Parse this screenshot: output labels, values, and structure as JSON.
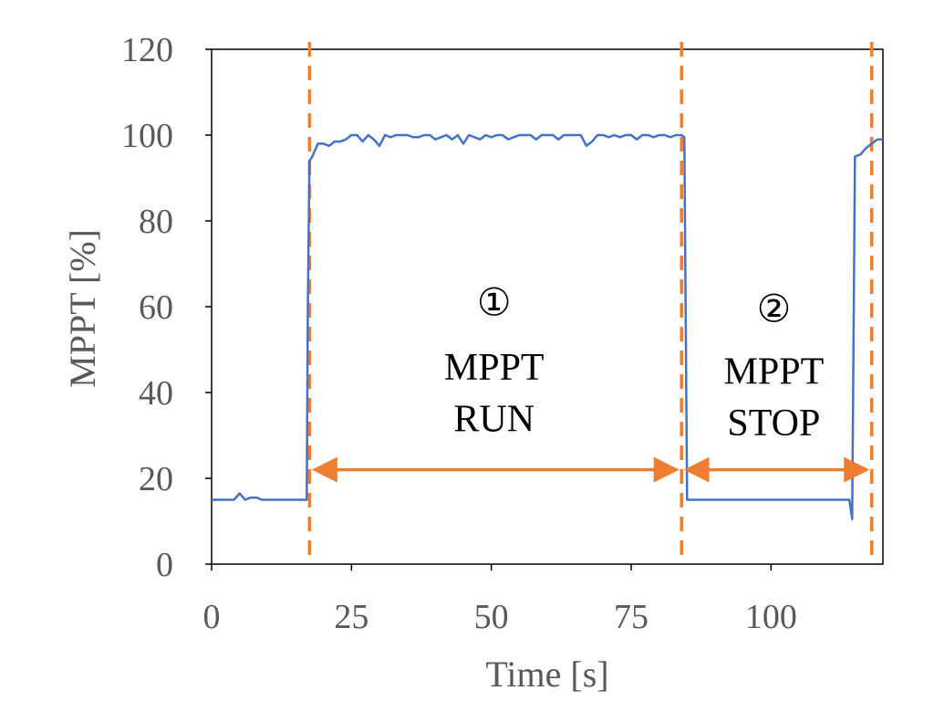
{
  "chart_data": {
    "type": "line",
    "xlabel": "Time [s]",
    "ylabel": "MPPT [%]",
    "xlim": [
      0,
      120
    ],
    "ylim": [
      0,
      120
    ],
    "xticks": [
      0,
      25,
      50,
      75,
      100
    ],
    "yticks": [
      0,
      20,
      40,
      60,
      80,
      100,
      120
    ],
    "grid": false,
    "legend": "none",
    "series": [
      {
        "x": [
          0,
          1,
          2,
          3,
          4,
          5,
          6,
          7,
          8,
          9,
          10,
          11,
          12,
          13,
          14,
          15,
          16,
          17,
          17.2,
          17.5,
          18,
          19,
          20,
          21,
          22,
          23,
          24,
          25,
          26,
          27,
          28,
          29,
          30,
          31,
          32,
          33,
          34,
          35,
          36,
          37,
          38,
          39,
          40,
          41,
          42,
          43,
          44,
          45,
          46,
          47,
          48,
          49,
          50,
          51,
          52,
          53,
          54,
          55,
          56,
          57,
          58,
          59,
          60,
          61,
          62,
          63,
          64,
          65,
          66,
          67,
          68,
          69,
          70,
          71,
          72,
          73,
          74,
          75,
          76,
          77,
          78,
          79,
          80,
          81,
          82,
          83,
          84,
          84.5,
          85,
          86,
          87,
          88,
          89,
          90,
          91,
          92,
          93,
          94,
          95,
          96,
          97,
          98,
          99,
          100,
          101,
          102,
          103,
          104,
          105,
          106,
          107,
          108,
          109,
          110,
          111,
          112,
          113,
          114,
          114.5,
          115,
          116,
          117,
          118,
          119,
          120
        ],
        "y": [
          15,
          15,
          15,
          15,
          15,
          16.5,
          15,
          15.5,
          15.5,
          15,
          15,
          15,
          15,
          15,
          15,
          15,
          15,
          15,
          60,
          94,
          95,
          98,
          98,
          97.5,
          98.5,
          98.5,
          99,
          100,
          100,
          98.5,
          100,
          99,
          97.5,
          100,
          99.5,
          100,
          100,
          100,
          99.5,
          99.5,
          100,
          100,
          99,
          99.5,
          100,
          99,
          100,
          98,
          100,
          99.5,
          99,
          100,
          99.5,
          100,
          100,
          99,
          99.5,
          100,
          100,
          100,
          99,
          100,
          100,
          100,
          99,
          100,
          100,
          100,
          100,
          97.5,
          98.5,
          100,
          100,
          99.5,
          100,
          99.5,
          100,
          100,
          99,
          100,
          100,
          99.5,
          100,
          100,
          99.5,
          100,
          100,
          99.5,
          15,
          15,
          15,
          15,
          15,
          15,
          15,
          15,
          15,
          15,
          15,
          15,
          15,
          15,
          15,
          15,
          15,
          15,
          15,
          15,
          15,
          15,
          15,
          15,
          15,
          15,
          15,
          15,
          15,
          15,
          10.5,
          95,
          95.5,
          97,
          98,
          99,
          99
        ]
      }
    ],
    "markers": [
      {
        "x": 17.5
      },
      {
        "x": 84
      },
      {
        "x": 118
      }
    ],
    "arrows": [
      {
        "from": 17.5,
        "to": 84,
        "y": 22
      },
      {
        "from": 84,
        "to": 118,
        "y": 22
      }
    ],
    "annotations": [
      {
        "lines": [
          "①",
          "MPPT",
          "RUN"
        ],
        "x": 50.5,
        "y": [
          58,
          43,
          31
        ]
      },
      {
        "lines": [
          "②",
          "MPPT",
          "STOP"
        ],
        "x": 100.5,
        "y": [
          56.5,
          42,
          30
        ]
      }
    ],
    "colors": {
      "line": "#4472C4",
      "marker": "#ED7D31",
      "axis": "#595959"
    }
  }
}
